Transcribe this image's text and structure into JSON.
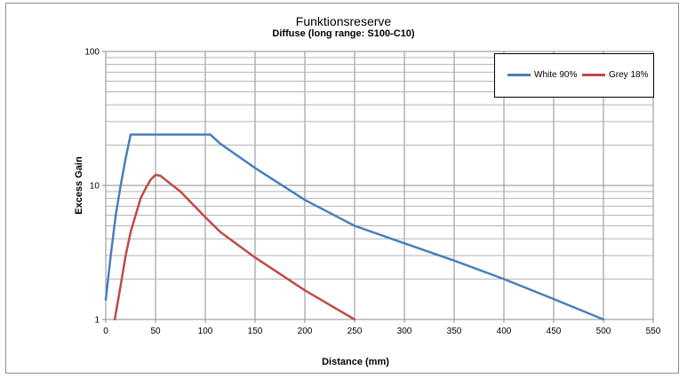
{
  "chart_data": {
    "type": "line",
    "title": "Funktionsreserve",
    "subtitle": "Diffuse (long range: S100-C10)",
    "xlabel": "Distance (mm)",
    "ylabel": "Excess Gain",
    "xlim": [
      0,
      550
    ],
    "ylim": [
      1,
      100
    ],
    "yscale": "log",
    "grid": true,
    "legend_position": "top-right",
    "x_ticks": [
      "0",
      "50",
      "100",
      "150",
      "200",
      "250",
      "300",
      "350",
      "400",
      "450",
      "500",
      "550"
    ],
    "y_ticks": [
      "1",
      "10",
      "100"
    ],
    "series": [
      {
        "name": "White 90%",
        "color": "#4a7ebb",
        "x": [
          0,
          5,
          10,
          15,
          20,
          25,
          30,
          50,
          75,
          100,
          105,
          115,
          150,
          200,
          250,
          300,
          350,
          400,
          450,
          500
        ],
        "y": [
          1.4,
          3.0,
          6.0,
          10.0,
          16.0,
          24,
          24,
          24,
          24,
          24,
          24,
          20.5,
          13.5,
          7.8,
          5.0,
          3.7,
          2.75,
          2.0,
          1.42,
          1.0
        ]
      },
      {
        "name": "Grey 18%",
        "color": "#be4b48",
        "x": [
          9,
          15,
          20,
          25,
          30,
          35,
          40,
          45,
          50,
          55,
          60,
          75,
          100,
          115,
          150,
          200,
          250
        ],
        "y": [
          1.0,
          1.8,
          3.0,
          4.5,
          6.0,
          8.0,
          9.5,
          11.0,
          12.0,
          11.8,
          11.0,
          9.0,
          5.8,
          4.5,
          2.9,
          1.65,
          1.0
        ]
      }
    ]
  }
}
